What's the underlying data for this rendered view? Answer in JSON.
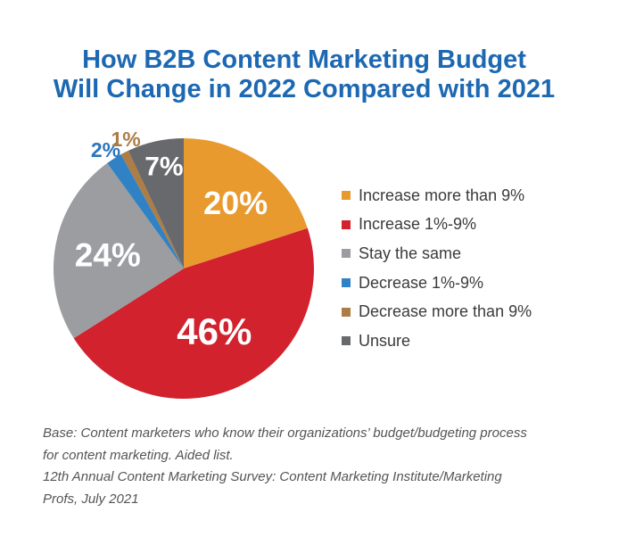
{
  "title": {
    "line1": "How B2B Content Marketing Budget",
    "line2": "Will Change in 2022 Compared with 2021",
    "color": "#1D68B2"
  },
  "chart_data": {
    "type": "pie",
    "title": "How B2B Content Marketing Budget Will Change in 2022 Compared with 2021",
    "start_angle_deg": 0,
    "direction": "clockwise",
    "legend_position": "right",
    "slices": [
      {
        "label": "Increase more than 9%",
        "value": 20,
        "display": "20%",
        "color": "#E89A2E",
        "label_color": "#FFFFFF"
      },
      {
        "label": "Increase 1%-9%",
        "value": 46,
        "display": "46%",
        "color": "#D1222D",
        "label_color": "#FFFFFF"
      },
      {
        "label": "Stay the same",
        "value": 24,
        "display": "24%",
        "color": "#9B9DA0",
        "label_color": "#FFFFFF"
      },
      {
        "label": "Decrease 1%-9%",
        "value": 2,
        "display": "2%",
        "color": "#3182C4",
        "label_color": "#2B76BC"
      },
      {
        "label": "Decrease more than 9%",
        "value": 1,
        "display": "1%",
        "color": "#AE7D45",
        "label_color": "#AE7D45"
      },
      {
        "label": "Unsure",
        "value": 7,
        "display": "7%",
        "color": "#67696C",
        "label_color": "#FFFFFF"
      }
    ]
  },
  "notes": [
    "Base: Content marketers who know their organizations’ budget/budgeting process",
    "for content marketing. Aided list.",
    "12th Annual Content Marketing Survey: Content Marketing Institute/Marketing",
    "Profs, July 2021"
  ]
}
